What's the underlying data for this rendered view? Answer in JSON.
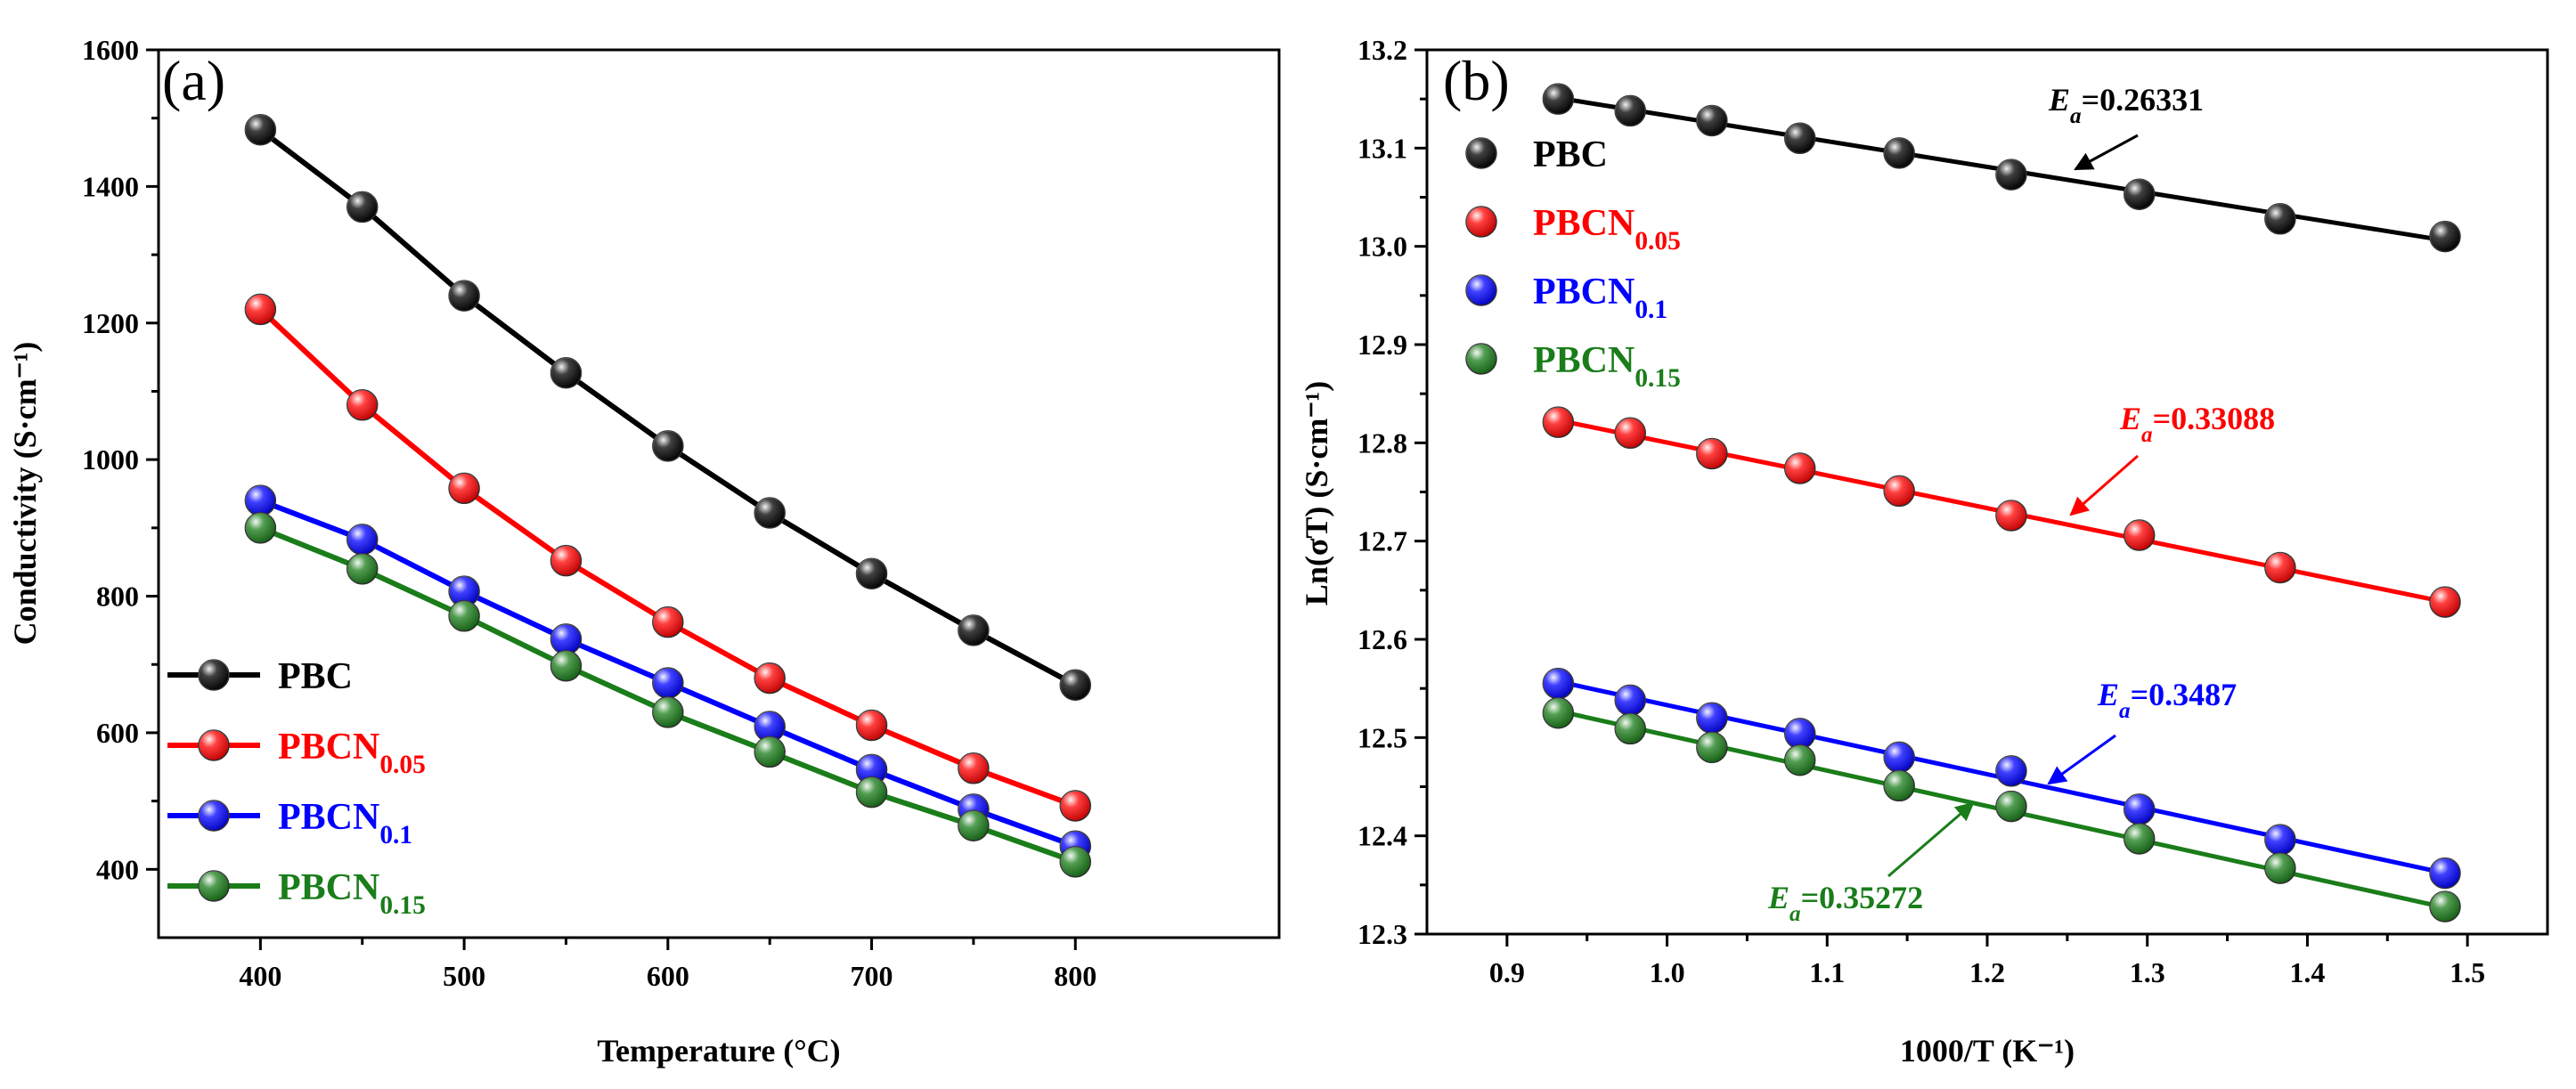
{
  "chart_data": [
    {
      "type": "line",
      "panel": "(a)",
      "xlabel": "Temperature (°C)",
      "ylabel": "Conductivity (S·cm⁻¹)",
      "xlim": [
        350,
        900
      ],
      "ylim": [
        300,
        1600
      ],
      "xticks": [
        400,
        500,
        600,
        700,
        800
      ],
      "yticks": [
        400,
        600,
        800,
        1000,
        1200,
        1400,
        1600
      ],
      "legend_position": "bottom-left",
      "x": [
        400,
        450,
        500,
        550,
        600,
        650,
        700,
        750,
        800
      ],
      "series": [
        {
          "name": "PBC",
          "base": "PBC",
          "sub": "",
          "color": "#000000",
          "values": [
            1483,
            1370,
            1240,
            1127,
            1020,
            922,
            833,
            750,
            670
          ]
        },
        {
          "name": "PBCN0.05",
          "base": "PBCN",
          "sub": "0.05",
          "color": "#ff0000",
          "values": [
            1220,
            1080,
            958,
            852,
            762,
            680,
            611,
            548,
            493
          ]
        },
        {
          "name": "PBCN0.1",
          "base": "PBCN",
          "sub": "0.1",
          "color": "#0000ff",
          "values": [
            940,
            883,
            807,
            737,
            673,
            609,
            546,
            488,
            434
          ]
        },
        {
          "name": "PBCN0.15",
          "base": "PBCN",
          "sub": "0.15",
          "color": "#1a7d1a",
          "values": [
            900,
            840,
            771,
            698,
            630,
            572,
            513,
            464,
            411
          ]
        }
      ]
    },
    {
      "type": "scatter",
      "panel": "(b)",
      "xlabel": "1000/T (K⁻¹)",
      "ylabel": "Ln(σT) (S·cm⁻¹)",
      "xlim": [
        0.85,
        1.55
      ],
      "ylim": [
        12.3,
        13.2
      ],
      "xticks": [
        0.9,
        1.0,
        1.1,
        1.2,
        1.3,
        1.4,
        1.5
      ],
      "yticks": [
        12.3,
        12.4,
        12.5,
        12.6,
        12.7,
        12.8,
        12.9,
        13.0,
        13.1,
        13.2
      ],
      "legend_position": "top-left",
      "x": [
        0.932,
        0.977,
        1.028,
        1.083,
        1.145,
        1.215,
        1.295,
        1.383,
        1.486
      ],
      "series": [
        {
          "name": "PBC",
          "base": "PBC",
          "sub": "",
          "color": "#000000",
          "values": [
            13.15,
            13.138,
            13.128,
            13.11,
            13.095,
            13.073,
            13.053,
            13.028,
            13.01
          ],
          "fit": [
            13.151,
            13.006
          ],
          "annotation": {
            "prefix": "E",
            "sub": "a",
            "text": "=0.26331"
          }
        },
        {
          "name": "PBCN0.05",
          "base": "PBCN",
          "sub": "0.05",
          "color": "#ff0000",
          "values": [
            12.821,
            12.81,
            12.789,
            12.774,
            12.751,
            12.726,
            12.706,
            12.673,
            12.638
          ],
          "fit": [
            12.823,
            12.638
          ],
          "annotation": {
            "prefix": "E",
            "sub": "a",
            "text": "=0.33088"
          }
        },
        {
          "name": "PBCN0.1",
          "base": "PBCN",
          "sub": "0.1",
          "color": "#0000ff",
          "values": [
            12.555,
            12.538,
            12.52,
            12.504,
            12.48,
            12.466,
            12.427,
            12.396,
            12.362
          ],
          "fit": [
            12.557,
            12.362
          ],
          "annotation": {
            "prefix": "E",
            "sub": "a",
            "text": "=0.3487"
          }
        },
        {
          "name": "PBCN0.15",
          "base": "PBCN",
          "sub": "0.15",
          "color": "#1a7d1a",
          "values": [
            12.525,
            12.509,
            12.49,
            12.477,
            12.451,
            12.43,
            12.397,
            12.367,
            12.328
          ],
          "fit": [
            12.527,
            12.327
          ],
          "annotation": {
            "prefix": "E",
            "sub": "a",
            "text": "=0.35272"
          }
        }
      ]
    }
  ]
}
